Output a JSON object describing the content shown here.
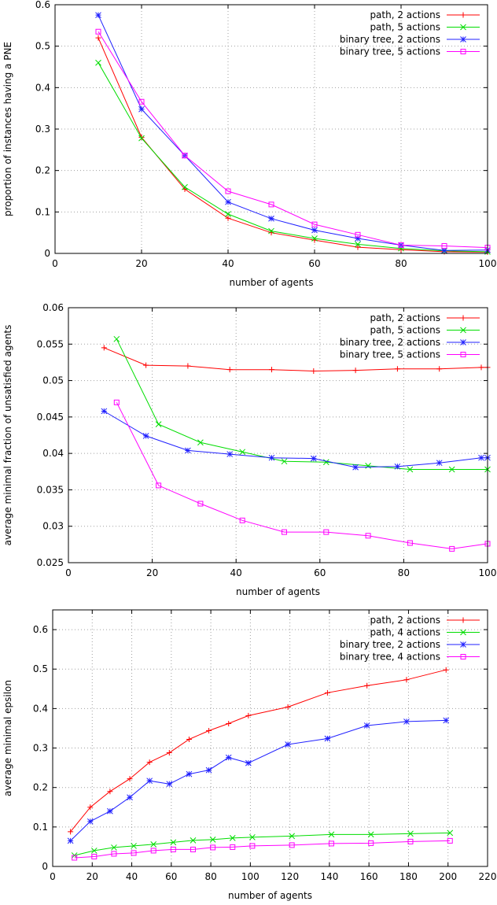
{
  "chart_data": [
    {
      "type": "line",
      "title": "",
      "xlabel": "number of agents",
      "ylabel": "proportion of instances having a PNE",
      "xlim": [
        0,
        100
      ],
      "ylim": [
        0,
        0.6
      ],
      "xticks": [
        0,
        20,
        40,
        60,
        80,
        100
      ],
      "yticks": [
        0,
        0.1,
        0.2,
        0.3,
        0.4,
        0.5,
        0.6
      ],
      "xtick_labels": [
        "0",
        "20",
        "40",
        "60",
        "80",
        "100"
      ],
      "ytick_labels": [
        "0",
        "0.1",
        "0.2",
        "0.3",
        "0.4",
        "0.5",
        "0.6"
      ],
      "grid": true,
      "legend_position": "top-right",
      "series": [
        {
          "name": "path, 2 actions",
          "color": "#ff0000",
          "marker": "plus",
          "x": [
            10,
            20,
            30,
            40,
            50,
            60,
            70,
            80,
            90,
            100
          ],
          "y": [
            0.52,
            0.28,
            0.155,
            0.085,
            0.05,
            0.032,
            0.015,
            0.009,
            0.004,
            0.003
          ]
        },
        {
          "name": "path, 5 actions",
          "color": "#00dd00",
          "marker": "cross",
          "x": [
            10,
            20,
            30,
            40,
            50,
            60,
            70,
            80,
            90,
            100
          ],
          "y": [
            0.46,
            0.278,
            0.16,
            0.095,
            0.054,
            0.036,
            0.022,
            0.012,
            0.006,
            0.004
          ]
        },
        {
          "name": "binary tree, 2 actions",
          "color": "#2020ff",
          "marker": "star",
          "x": [
            10,
            20,
            30,
            40,
            50,
            60,
            70,
            80,
            90,
            100
          ],
          "y": [
            0.575,
            0.348,
            0.236,
            0.124,
            0.084,
            0.056,
            0.036,
            0.02,
            0.007,
            0.008
          ]
        },
        {
          "name": "binary tree, 5 actions",
          "color": "#ff00ff",
          "marker": "square",
          "x": [
            10,
            20,
            30,
            40,
            50,
            60,
            70,
            80,
            90,
            100
          ],
          "y": [
            0.535,
            0.366,
            0.236,
            0.15,
            0.118,
            0.07,
            0.045,
            0.02,
            0.018,
            0.014
          ]
        }
      ]
    },
    {
      "type": "line",
      "title": "",
      "xlabel": "number of agents",
      "ylabel": "average minimal fraction of unsatisfied agents",
      "xlim": [
        0,
        100
      ],
      "ylim": [
        0.025,
        0.06
      ],
      "xticks": [
        0,
        20,
        40,
        60,
        80,
        100
      ],
      "yticks": [
        0.025,
        0.03,
        0.035,
        0.04,
        0.045,
        0.05,
        0.055,
        0.06
      ],
      "xtick_labels": [
        "0",
        "20",
        "40",
        "60",
        "80",
        "100"
      ],
      "ytick_labels": [
        "0.025",
        "0.03",
        "0.035",
        "0.04",
        "0.045",
        "0.05",
        "0.055",
        "0.06"
      ],
      "grid": true,
      "legend_position": "top-right",
      "series": [
        {
          "name": "path, 2 actions",
          "color": "#ff0000",
          "marker": "plus",
          "x": [
            8.5,
            18.5,
            28.5,
            38.5,
            48.5,
            58.5,
            68.5,
            78.5,
            88.5,
            98.5,
            100
          ],
          "y": [
            0.0545,
            0.0521,
            0.052,
            0.0515,
            0.0515,
            0.0513,
            0.0514,
            0.0516,
            0.0516,
            0.0518,
            0.0518
          ]
        },
        {
          "name": "path, 5 actions",
          "color": "#00dd00",
          "marker": "cross",
          "x": [
            11.5,
            21.5,
            31.5,
            41.5,
            51.5,
            61.5,
            71.5,
            81.5,
            91.5,
            100
          ],
          "y": [
            0.0557,
            0.044,
            0.0415,
            0.0402,
            0.0389,
            0.0388,
            0.0383,
            0.0378,
            0.0378,
            0.0378
          ]
        },
        {
          "name": "binary tree, 2 actions",
          "color": "#2020ff",
          "marker": "star",
          "x": [
            8.5,
            18.5,
            28.5,
            38.5,
            48.5,
            58.5,
            68.5,
            78.5,
            88.5,
            98.5,
            100
          ],
          "y": [
            0.0458,
            0.0424,
            0.0404,
            0.0399,
            0.0394,
            0.0393,
            0.0381,
            0.0382,
            0.0387,
            0.0394,
            0.0394
          ]
        },
        {
          "name": "binary tree, 5 actions",
          "color": "#ff00ff",
          "marker": "square",
          "x": [
            11.5,
            21.5,
            31.5,
            41.5,
            51.5,
            61.5,
            71.5,
            81.5,
            91.5,
            100
          ],
          "y": [
            0.047,
            0.0356,
            0.0331,
            0.0308,
            0.0292,
            0.0292,
            0.0287,
            0.0277,
            0.0269,
            0.0276
          ]
        }
      ]
    },
    {
      "type": "line",
      "title": "",
      "xlabel": "number of agents",
      "ylabel": "average minimal epsilon",
      "xlim": [
        0,
        220
      ],
      "ylim": [
        0,
        0.65
      ],
      "xticks": [
        0,
        20,
        40,
        60,
        80,
        100,
        120,
        140,
        160,
        180,
        200,
        220
      ],
      "yticks": [
        0,
        0.1,
        0.2,
        0.3,
        0.4,
        0.5,
        0.6
      ],
      "xtick_labels": [
        "0",
        "20",
        "40",
        "60",
        "80",
        "100",
        "120",
        "140",
        "160",
        "180",
        "200",
        "220"
      ],
      "ytick_labels": [
        "0",
        "0.1",
        "0.2",
        "0.3",
        "0.4",
        "0.5",
        "0.6"
      ],
      "grid": true,
      "legend_position": "top-right",
      "series": [
        {
          "name": "path, 2 actions",
          "color": "#ff0000",
          "marker": "plus",
          "x": [
            9,
            19,
            29,
            39,
            49,
            59,
            69,
            79,
            89,
            99,
            119,
            139,
            159,
            179,
            199
          ],
          "y": [
            0.088,
            0.15,
            0.19,
            0.222,
            0.264,
            0.288,
            0.322,
            0.344,
            0.362,
            0.382,
            0.404,
            0.44,
            0.458,
            0.473,
            0.498
          ]
        },
        {
          "name": "path, 4 actions",
          "color": "#00dd00",
          "marker": "cross",
          "x": [
            11,
            21,
            31,
            41,
            51,
            61,
            71,
            81,
            91,
            101,
            121,
            141,
            161,
            181,
            201
          ],
          "y": [
            0.028,
            0.04,
            0.048,
            0.052,
            0.056,
            0.061,
            0.066,
            0.068,
            0.072,
            0.074,
            0.077,
            0.081,
            0.081,
            0.083,
            0.085
          ]
        },
        {
          "name": "binary tree, 2 actions",
          "color": "#2020ff",
          "marker": "star",
          "x": [
            9,
            19,
            29,
            39,
            49,
            59,
            69,
            79,
            89,
            99,
            119,
            139,
            159,
            179,
            199
          ],
          "y": [
            0.065,
            0.114,
            0.14,
            0.175,
            0.217,
            0.209,
            0.234,
            0.244,
            0.276,
            0.262,
            0.309,
            0.324,
            0.357,
            0.367,
            0.37
          ]
        },
        {
          "name": "binary tree, 4 actions",
          "color": "#ff00ff",
          "marker": "square",
          "x": [
            11,
            21,
            31,
            41,
            51,
            61,
            71,
            81,
            91,
            101,
            121,
            141,
            161,
            181,
            201
          ],
          "y": [
            0.022,
            0.025,
            0.032,
            0.034,
            0.04,
            0.043,
            0.043,
            0.048,
            0.049,
            0.052,
            0.054,
            0.058,
            0.059,
            0.063,
            0.065
          ]
        }
      ]
    }
  ]
}
